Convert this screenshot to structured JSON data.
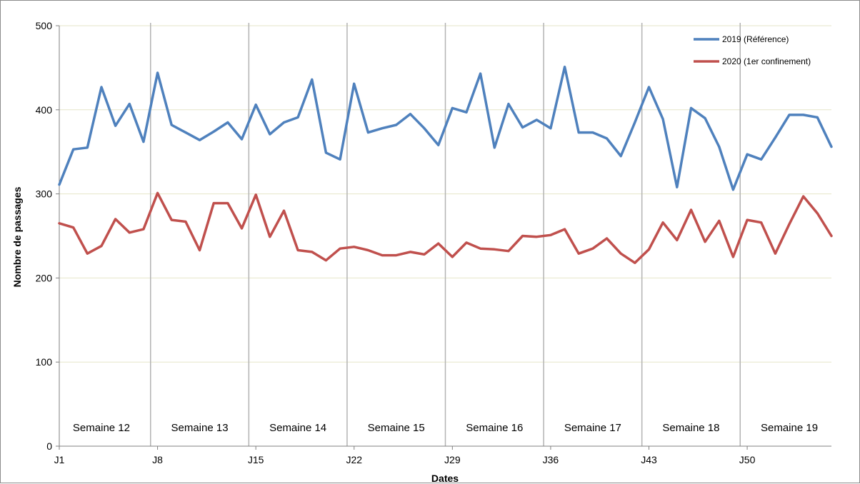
{
  "chart_data": {
    "type": "line",
    "xlabel": "Dates",
    "ylabel": "Nombre de passages",
    "ylim": [
      0,
      500
    ],
    "yticks": [
      "0",
      "100",
      "200",
      "300",
      "400",
      "500"
    ],
    "x_days": 56,
    "xticks": [
      {
        "day": 1,
        "label": "J1"
      },
      {
        "day": 8,
        "label": "J8"
      },
      {
        "day": 15,
        "label": "J15"
      },
      {
        "day": 22,
        "label": "J22"
      },
      {
        "day": 29,
        "label": "J29"
      },
      {
        "day": 36,
        "label": "J36"
      },
      {
        "day": 43,
        "label": "J43"
      },
      {
        "day": 50,
        "label": "J50"
      }
    ],
    "weeks": [
      "Semaine 12",
      "Semaine 13",
      "Semaine 14",
      "Semaine 15",
      "Semaine 16",
      "Semaine 17",
      "Semaine 18",
      "Semaine 19"
    ],
    "grid": true,
    "legend_position": "top-right",
    "series": [
      {
        "name": "2019 (Référence)",
        "color": "#4f81bd",
        "values": [
          311,
          353,
          355,
          427,
          381,
          407,
          362,
          444,
          382,
          373,
          364,
          374,
          385,
          365,
          406,
          371,
          385,
          391,
          436,
          349,
          341,
          431,
          373,
          378,
          382,
          395,
          378,
          358,
          402,
          397,
          443,
          355,
          407,
          379,
          388,
          378,
          451,
          373,
          373,
          366,
          345,
          385,
          427,
          389,
          308,
          402,
          390,
          356,
          305,
          347,
          341,
          367,
          394,
          394,
          391,
          356
        ]
      },
      {
        "name": "2020 (1er confinement)",
        "color": "#c0504d",
        "values": [
          265,
          260,
          229,
          238,
          270,
          254,
          258,
          301,
          269,
          267,
          233,
          289,
          289,
          259,
          299,
          249,
          280,
          233,
          231,
          221,
          235,
          237,
          233,
          227,
          227,
          231,
          228,
          241,
          225,
          242,
          235,
          234,
          232,
          250,
          249,
          251,
          258,
          229,
          235,
          247,
          229,
          218,
          234,
          266,
          245,
          281,
          243,
          268,
          225,
          269,
          266,
          229,
          264,
          297,
          277,
          250
        ]
      }
    ]
  }
}
